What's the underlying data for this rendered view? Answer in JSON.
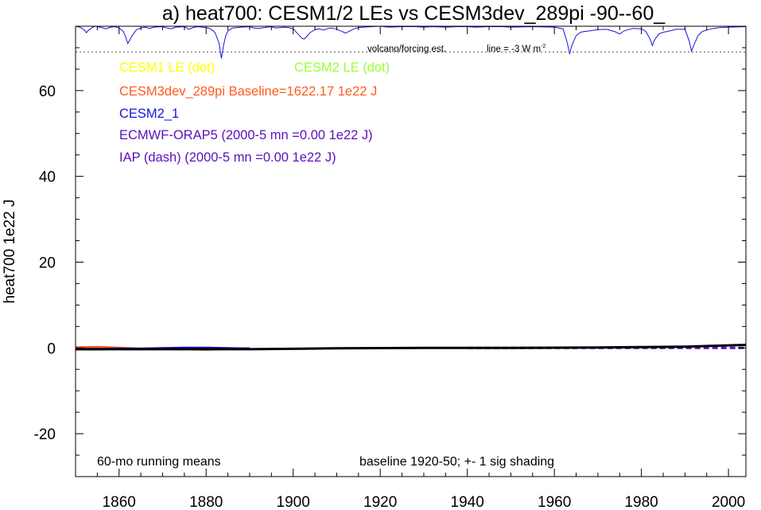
{
  "chart_data": {
    "type": "line",
    "title": "a) heat700: CESM1/2 LEs vs CESM3dev_289pi -90--60_",
    "xlabel": "",
    "ylabel": "heat700 1e22 J",
    "xlim": [
      1850,
      2004
    ],
    "ylim": [
      -30,
      75
    ],
    "xticks": [
      1860,
      1880,
      1900,
      1920,
      1940,
      1960,
      1980,
      2000
    ],
    "yticks": [
      -20,
      0,
      20,
      40,
      60
    ],
    "grid": false,
    "volcano_ref": 69,
    "legend": [
      {
        "text": "CESM1 LE (dot)",
        "color": "#ffff00"
      },
      {
        "text": "CESM2 LE (dot)",
        "color": "#99ff33"
      },
      {
        "text": "CESM3dev_289pi Baseline=1622.17 1e22 J",
        "color": "#ff5a1e"
      },
      {
        "text": "CESM2_1",
        "color": "#1414dc"
      },
      {
        "text": "ECMWF-ORAP5 (2000-5 mn =0.00 1e22 J)",
        "color": "#5a0fbe"
      },
      {
        "text": "IAP (dash) (2000-5 mn =0.00 1e22 J)",
        "color": "#5a0fbe"
      }
    ],
    "annotations": {
      "volcano_label": "volcano/forcing est.",
      "line_label": "line = -3 W m",
      "line_label_sup": "-2",
      "running_mean": "60-mo running means",
      "baseline_note": "baseline 1920-50; +- 1 sig shading"
    },
    "series": [
      {
        "name": "CESM3dev_289pi Baseline=1622.17 1e22 J",
        "color": "#ff5a1e",
        "width": 3,
        "x": [
          1850,
          1855,
          1860,
          1865,
          1870,
          1875,
          1880,
          1885,
          1890
        ],
        "y": [
          0.1,
          0.2,
          0.0,
          -0.2,
          -0.1,
          -0.2,
          -0.4,
          -0.2,
          -0.1
        ]
      },
      {
        "name": "CESM2_1",
        "color": "#1414dc",
        "width": 3,
        "x": [
          1850,
          1855,
          1860,
          1865,
          1870,
          1875,
          1880,
          1885,
          1890
        ],
        "y": [
          -0.3,
          -0.3,
          -0.2,
          -0.2,
          -0.1,
          0.0,
          0.0,
          -0.1,
          -0.2
        ]
      },
      {
        "name": "ECMWF-ORAP5 (2000-5 mn =0.00 1e22 J)",
        "color": "#5a0fbe",
        "width": 3,
        "dash": "7,4",
        "x": [
          1940,
          1950,
          1960,
          1970,
          1980,
          1990,
          2000,
          2004
        ],
        "y": [
          0.0,
          0.0,
          0.0,
          0.0,
          0.0,
          0.0,
          0.0,
          0.0
        ]
      },
      {
        "name": "",
        "color": "#000000",
        "width": 3,
        "x": [
          1850,
          1870,
          1890,
          1910,
          1930,
          1950,
          1970,
          1990,
          2004
        ],
        "y": [
          -0.3,
          -0.3,
          -0.3,
          -0.1,
          0.0,
          0.0,
          0.1,
          0.3,
          0.7
        ]
      }
    ],
    "volcano": {
      "color": "#1414dc",
      "baseline": 74.6,
      "x": [
        1850,
        1851,
        1852,
        1852.5,
        1853,
        1854,
        1854.5,
        1855,
        1856,
        1857,
        1858,
        1859,
        1860,
        1861,
        1861.5,
        1862,
        1863,
        1864,
        1865,
        1866,
        1867,
        1868,
        1870,
        1871,
        1872,
        1873,
        1875,
        1876,
        1877,
        1878,
        1880,
        1881,
        1882,
        1883,
        1883.5,
        1884,
        1884.5,
        1885,
        1886,
        1888,
        1890,
        1891,
        1892,
        1894,
        1895,
        1896,
        1898,
        1899,
        1900,
        1901,
        1902,
        1902.5,
        1903,
        1904,
        1905,
        1906,
        1907,
        1908,
        1909,
        1910,
        1911,
        1912,
        1913,
        1914,
        1915,
        1916,
        1918,
        1920,
        1922,
        1925,
        1928,
        1930,
        1932,
        1935,
        1938,
        1940,
        1942,
        1945,
        1948,
        1950,
        1955,
        1960,
        1962,
        1963,
        1963.5,
        1964,
        1965,
        1966,
        1967,
        1968,
        1970,
        1972,
        1974,
        1975,
        1976,
        1978,
        1980,
        1981,
        1982,
        1982.5,
        1983,
        1984,
        1985,
        1986,
        1988,
        1990,
        1991,
        1991.5,
        1992,
        1993,
        1994,
        1996,
        1998,
        2000,
        2004
      ],
      "y": [
        75,
        74.8,
        74.2,
        73.5,
        74.1,
        74.8,
        75,
        74.9,
        74.7,
        74.4,
        74.8,
        74.9,
        74.6,
        73.8,
        72.5,
        71,
        72.8,
        74.2,
        74.6,
        74.8,
        74.5,
        74.8,
        74.9,
        74.6,
        74.4,
        74.8,
        74.9,
        74.3,
        74.7,
        74.9,
        74.7,
        74.4,
        73.6,
        71,
        67.5,
        70.5,
        72.8,
        73.9,
        74.6,
        74.8,
        74.9,
        74.6,
        74.5,
        74.8,
        74.9,
        74.6,
        74.8,
        74.7,
        74.4,
        73.3,
        72.2,
        72,
        72.5,
        73.6,
        74.2,
        74.4,
        74.1,
        74.5,
        74.6,
        74.3,
        73.9,
        73.4,
        73.9,
        74.4,
        74.7,
        74.8,
        74.9,
        75,
        74.8,
        74.9,
        74.9,
        74.8,
        74.9,
        74.8,
        74.9,
        74.9,
        74.8,
        74.9,
        74.9,
        74.8,
        74.9,
        74.8,
        74.4,
        71,
        68.5,
        70.5,
        72.8,
        73.6,
        73.8,
        73.9,
        74.2,
        74.3,
        73.7,
        73.2,
        73.9,
        74.5,
        74.4,
        73.8,
        72,
        70.5,
        71.8,
        73.2,
        73.6,
        73.8,
        74.3,
        74.3,
        71.5,
        69.2,
        70.5,
        72.8,
        73.8,
        74.4,
        74.7,
        74.8,
        74.9
      ]
    }
  }
}
